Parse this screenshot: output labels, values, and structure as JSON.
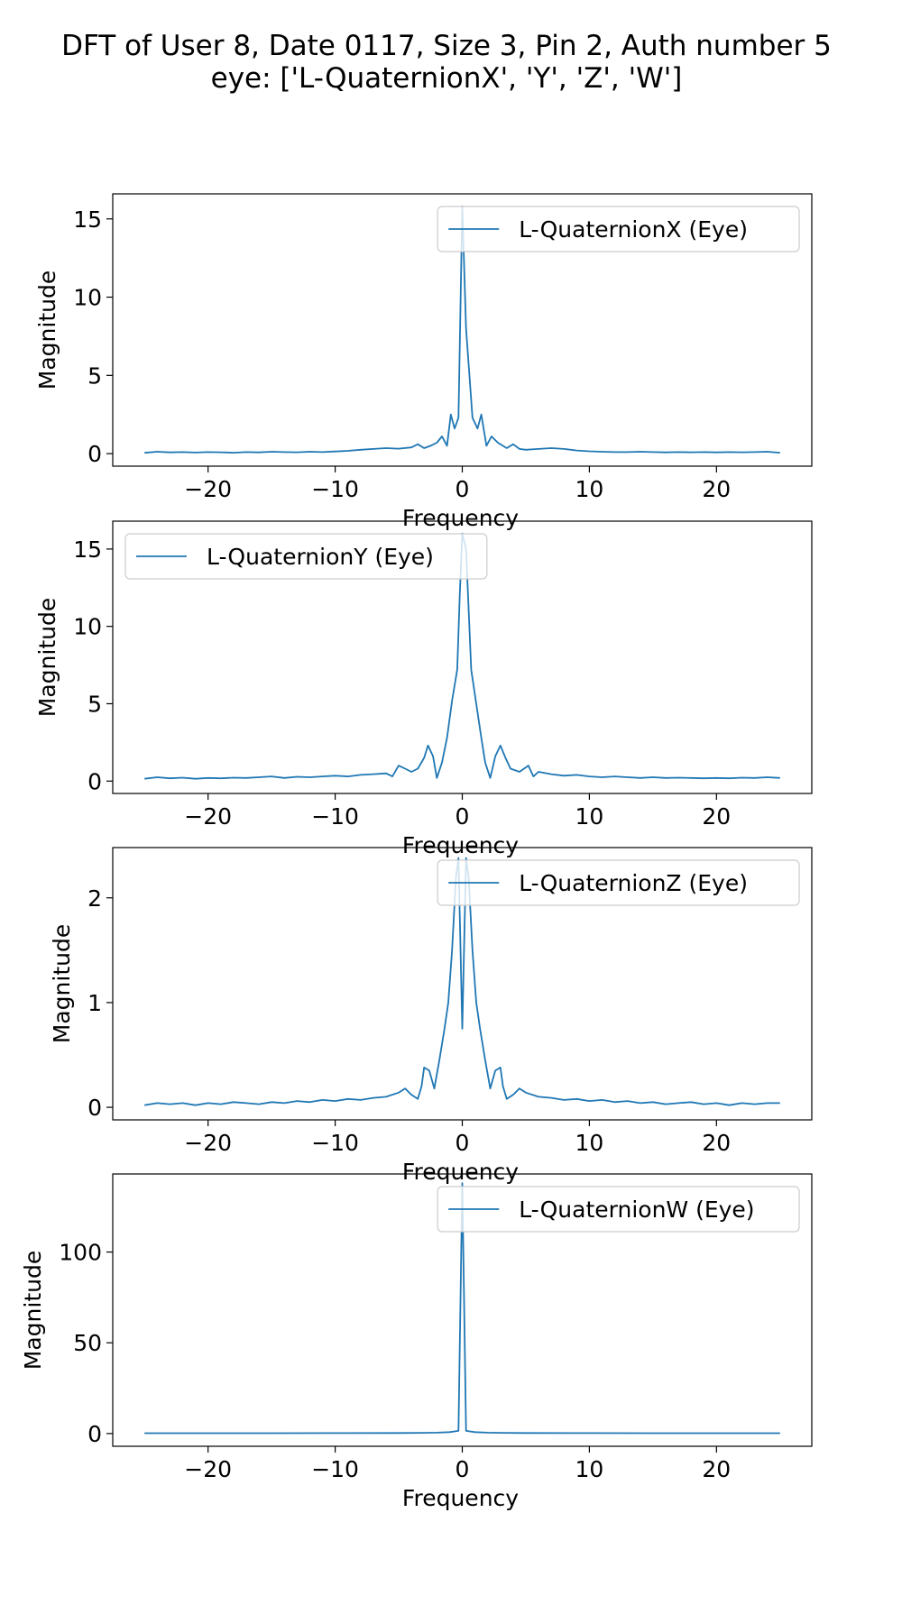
{
  "figure": {
    "title_line1": "DFT of User 8, Date 0117, Size 3, Pin 2, Auth number 5",
    "title_line2": "eye: ['L-QuaternionX', 'Y', 'Z', 'W']"
  },
  "colors": {
    "line": "#1f77b4",
    "axes": "#000000",
    "legend_border": "#cccccc"
  },
  "chart_data": [
    {
      "type": "line",
      "series": [
        {
          "name": "L-QuaternionX (Eye)",
          "points": [
            [
              -25,
              0.05
            ],
            [
              -24,
              0.12
            ],
            [
              -23,
              0.08
            ],
            [
              -22,
              0.1
            ],
            [
              -21,
              0.07
            ],
            [
              -20,
              0.1
            ],
            [
              -19,
              0.09
            ],
            [
              -18,
              0.06
            ],
            [
              -17,
              0.1
            ],
            [
              -16,
              0.08
            ],
            [
              -15,
              0.12
            ],
            [
              -14,
              0.1
            ],
            [
              -13,
              0.09
            ],
            [
              -12,
              0.12
            ],
            [
              -11,
              0.1
            ],
            [
              -10,
              0.14
            ],
            [
              -9,
              0.18
            ],
            [
              -8,
              0.25
            ],
            [
              -7,
              0.3
            ],
            [
              -6,
              0.35
            ],
            [
              -5,
              0.32
            ],
            [
              -4,
              0.4
            ],
            [
              -3.5,
              0.6
            ],
            [
              -3,
              0.35
            ],
            [
              -2.5,
              0.5
            ],
            [
              -2,
              0.7
            ],
            [
              -1.6,
              1.1
            ],
            [
              -1.2,
              0.5
            ],
            [
              -0.9,
              2.5
            ],
            [
              -0.6,
              1.6
            ],
            [
              -0.3,
              2.3
            ],
            [
              0,
              15.8
            ],
            [
              0.3,
              8
            ],
            [
              0.8,
              2.3
            ],
            [
              1.2,
              1.6
            ],
            [
              1.5,
              2.5
            ],
            [
              1.9,
              0.5
            ],
            [
              2.3,
              1.1
            ],
            [
              2.8,
              0.7
            ],
            [
              3.5,
              0.35
            ],
            [
              4,
              0.6
            ],
            [
              4.5,
              0.3
            ],
            [
              5,
              0.25
            ],
            [
              6,
              0.3
            ],
            [
              7,
              0.35
            ],
            [
              8,
              0.3
            ],
            [
              9,
              0.2
            ],
            [
              10,
              0.15
            ],
            [
              11,
              0.12
            ],
            [
              12,
              0.1
            ],
            [
              13,
              0.1
            ],
            [
              14,
              0.12
            ],
            [
              15,
              0.1
            ],
            [
              16,
              0.08
            ],
            [
              17,
              0.1
            ],
            [
              18,
              0.09
            ],
            [
              19,
              0.1
            ],
            [
              20,
              0.08
            ],
            [
              21,
              0.1
            ],
            [
              22,
              0.09
            ],
            [
              23,
              0.1
            ],
            [
              24,
              0.12
            ],
            [
              25,
              0.06
            ]
          ],
          "legend_loc": "upper right"
        }
      ],
      "xlabel": "Frequency",
      "ylabel": "Magnitude",
      "xlim": [
        -27.5,
        27.5
      ],
      "ylim": [
        -0.8,
        16.6
      ],
      "xticks": [
        -20,
        -10,
        0,
        10,
        20
      ],
      "yticks": [
        0,
        5,
        10,
        15
      ]
    },
    {
      "type": "line",
      "series": [
        {
          "name": "L-QuaternionY (Eye)",
          "points": [
            [
              -25,
              0.15
            ],
            [
              -24,
              0.25
            ],
            [
              -23,
              0.18
            ],
            [
              -22,
              0.22
            ],
            [
              -21,
              0.15
            ],
            [
              -20,
              0.2
            ],
            [
              -19,
              0.18
            ],
            [
              -18,
              0.22
            ],
            [
              -17,
              0.2
            ],
            [
              -16,
              0.25
            ],
            [
              -15,
              0.3
            ],
            [
              -14,
              0.2
            ],
            [
              -13,
              0.28
            ],
            [
              -12,
              0.25
            ],
            [
              -11,
              0.3
            ],
            [
              -10,
              0.35
            ],
            [
              -9,
              0.3
            ],
            [
              -8,
              0.4
            ],
            [
              -7,
              0.45
            ],
            [
              -6,
              0.5
            ],
            [
              -5.5,
              0.3
            ],
            [
              -5,
              1.0
            ],
            [
              -4.5,
              0.8
            ],
            [
              -4,
              0.6
            ],
            [
              -3.5,
              0.8
            ],
            [
              -3,
              1.5
            ],
            [
              -2.7,
              2.3
            ],
            [
              -2.3,
              1.6
            ],
            [
              -2,
              0.2
            ],
            [
              -1.6,
              1.2
            ],
            [
              -1.2,
              2.8
            ],
            [
              -0.8,
              5.2
            ],
            [
              -0.4,
              7.2
            ],
            [
              -0.2,
              12
            ],
            [
              0,
              16
            ],
            [
              0.3,
              15
            ],
            [
              0.7,
              7.2
            ],
            [
              1.1,
              5
            ],
            [
              1.5,
              2.8
            ],
            [
              1.8,
              1.2
            ],
            [
              2.2,
              0.2
            ],
            [
              2.6,
              1.6
            ],
            [
              3,
              2.3
            ],
            [
              3.4,
              1.5
            ],
            [
              3.8,
              0.8
            ],
            [
              4.5,
              0.6
            ],
            [
              5.2,
              1.0
            ],
            [
              5.6,
              0.3
            ],
            [
              6,
              0.6
            ],
            [
              7,
              0.45
            ],
            [
              8,
              0.35
            ],
            [
              9,
              0.4
            ],
            [
              10,
              0.3
            ],
            [
              11,
              0.25
            ],
            [
              12,
              0.3
            ],
            [
              13,
              0.25
            ],
            [
              14,
              0.2
            ],
            [
              15,
              0.25
            ],
            [
              16,
              0.2
            ],
            [
              17,
              0.22
            ],
            [
              18,
              0.2
            ],
            [
              19,
              0.18
            ],
            [
              20,
              0.2
            ],
            [
              21,
              0.18
            ],
            [
              22,
              0.22
            ],
            [
              23,
              0.2
            ],
            [
              24,
              0.25
            ],
            [
              25,
              0.2
            ]
          ],
          "legend_loc": "upper left"
        }
      ],
      "xlabel": "Frequency",
      "ylabel": "Magnitude",
      "xlim": [
        -27.5,
        27.5
      ],
      "ylim": [
        -0.8,
        16.8
      ],
      "xticks": [
        -20,
        -10,
        0,
        10,
        20
      ],
      "yticks": [
        0,
        5,
        10,
        15
      ]
    },
    {
      "type": "line",
      "series": [
        {
          "name": "L-QuaternionZ (Eye)",
          "points": [
            [
              -25,
              0.02
            ],
            [
              -24,
              0.04
            ],
            [
              -23,
              0.03
            ],
            [
              -22,
              0.04
            ],
            [
              -21,
              0.02
            ],
            [
              -20,
              0.04
            ],
            [
              -19,
              0.03
            ],
            [
              -18,
              0.05
            ],
            [
              -17,
              0.04
            ],
            [
              -16,
              0.03
            ],
            [
              -15,
              0.05
            ],
            [
              -14,
              0.04
            ],
            [
              -13,
              0.06
            ],
            [
              -12,
              0.05
            ],
            [
              -11,
              0.07
            ],
            [
              -10,
              0.06
            ],
            [
              -9,
              0.08
            ],
            [
              -8,
              0.07
            ],
            [
              -7,
              0.09
            ],
            [
              -6,
              0.1
            ],
            [
              -5,
              0.14
            ],
            [
              -4.5,
              0.18
            ],
            [
              -4,
              0.12
            ],
            [
              -3.5,
              0.08
            ],
            [
              -3.2,
              0.2
            ],
            [
              -3,
              0.38
            ],
            [
              -2.6,
              0.35
            ],
            [
              -2.2,
              0.18
            ],
            [
              -1.8,
              0.45
            ],
            [
              -1.4,
              0.75
            ],
            [
              -1.1,
              1.0
            ],
            [
              -0.8,
              1.5
            ],
            [
              -0.5,
              2.2
            ],
            [
              -0.3,
              2.38
            ],
            [
              0,
              0.75
            ],
            [
              0.3,
              2.38
            ],
            [
              0.5,
              2.2
            ],
            [
              0.8,
              1.5
            ],
            [
              1.1,
              1.0
            ],
            [
              1.4,
              0.75
            ],
            [
              1.8,
              0.45
            ],
            [
              2.2,
              0.18
            ],
            [
              2.6,
              0.35
            ],
            [
              3,
              0.38
            ],
            [
              3.2,
              0.2
            ],
            [
              3.5,
              0.08
            ],
            [
              4,
              0.12
            ],
            [
              4.5,
              0.18
            ],
            [
              5,
              0.14
            ],
            [
              6,
              0.1
            ],
            [
              7,
              0.09
            ],
            [
              8,
              0.07
            ],
            [
              9,
              0.08
            ],
            [
              10,
              0.06
            ],
            [
              11,
              0.07
            ],
            [
              12,
              0.05
            ],
            [
              13,
              0.06
            ],
            [
              14,
              0.04
            ],
            [
              15,
              0.05
            ],
            [
              16,
              0.03
            ],
            [
              17,
              0.04
            ],
            [
              18,
              0.05
            ],
            [
              19,
              0.03
            ],
            [
              20,
              0.04
            ],
            [
              21,
              0.02
            ],
            [
              22,
              0.04
            ],
            [
              23,
              0.03
            ],
            [
              24,
              0.04
            ],
            [
              25,
              0.04
            ]
          ],
          "legend_loc": "upper right"
        }
      ],
      "xlabel": "Frequency",
      "ylabel": "Magnitude",
      "xlim": [
        -27.5,
        27.5
      ],
      "ylim": [
        -0.12,
        2.48
      ],
      "xticks": [
        -20,
        -10,
        0,
        10,
        20
      ],
      "yticks": [
        0,
        1,
        2
      ]
    },
    {
      "type": "line",
      "series": [
        {
          "name": "L-QuaternionW (Eye)",
          "points": [
            [
              -25,
              0.2
            ],
            [
              -20,
              0.2
            ],
            [
              -15,
              0.2
            ],
            [
              -10,
              0.25
            ],
            [
              -5,
              0.3
            ],
            [
              -3,
              0.4
            ],
            [
              -2,
              0.5
            ],
            [
              -1,
              0.8
            ],
            [
              -0.3,
              1.5
            ],
            [
              0,
              138
            ],
            [
              0.3,
              1.5
            ],
            [
              1,
              0.8
            ],
            [
              2,
              0.5
            ],
            [
              3,
              0.4
            ],
            [
              5,
              0.3
            ],
            [
              10,
              0.25
            ],
            [
              15,
              0.2
            ],
            [
              20,
              0.2
            ],
            [
              25,
              0.2
            ]
          ],
          "legend_loc": "upper right"
        }
      ],
      "xlabel": "Frequency",
      "ylabel": "Magnitude",
      "xlim": [
        -27.5,
        27.5
      ],
      "ylim": [
        -7,
        143
      ],
      "xticks": [
        -20,
        -10,
        0,
        10,
        20
      ],
      "yticks": [
        0,
        50,
        100
      ]
    }
  ]
}
